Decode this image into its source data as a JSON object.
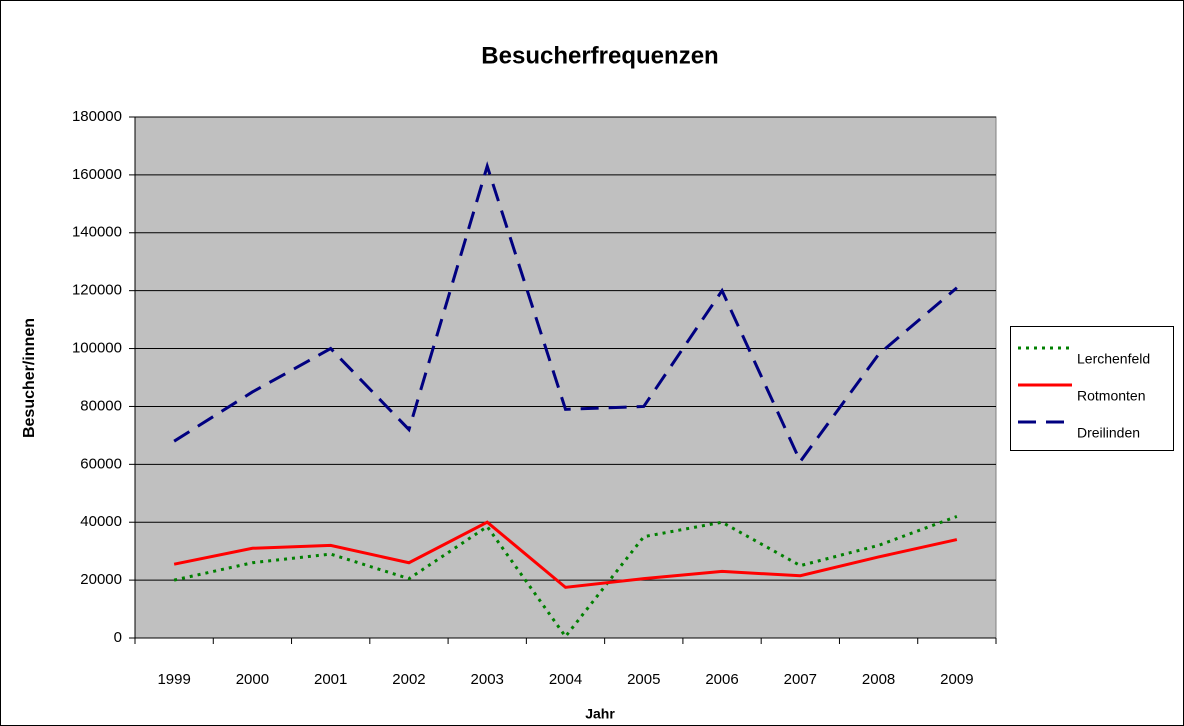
{
  "chart_data": {
    "type": "line",
    "title": "Besucherfrequenzen",
    "x_label": "Jahr",
    "y_label": "Besucher/innen",
    "categories": [
      "1999",
      "2000",
      "2001",
      "2002",
      "2003",
      "2004",
      "2005",
      "2006",
      "2007",
      "2008",
      "2009"
    ],
    "series": [
      {
        "name": "Lerchenfeld",
        "color": "#008000",
        "dash": "dotted",
        "values": [
          20000,
          26000,
          29000,
          20500,
          38500,
          500,
          35000,
          40000,
          25000,
          32000,
          42000
        ]
      },
      {
        "name": "Rotmonten",
        "color": "#ff0000",
        "dash": "solid",
        "values": [
          25500,
          31000,
          32000,
          26000,
          40000,
          17500,
          20500,
          23000,
          21500,
          28000,
          34000
        ]
      },
      {
        "name": "Dreilinden",
        "color": "#000080",
        "dash": "dashed",
        "values": [
          68000,
          85000,
          100000,
          72000,
          163000,
          79000,
          80000,
          120000,
          61000,
          98000,
          121000
        ]
      }
    ],
    "ylim": [
      0,
      180000
    ],
    "yticks": [
      0,
      20000,
      40000,
      60000,
      80000,
      100000,
      120000,
      140000,
      160000,
      180000
    ],
    "grid": true,
    "legend": "right"
  }
}
